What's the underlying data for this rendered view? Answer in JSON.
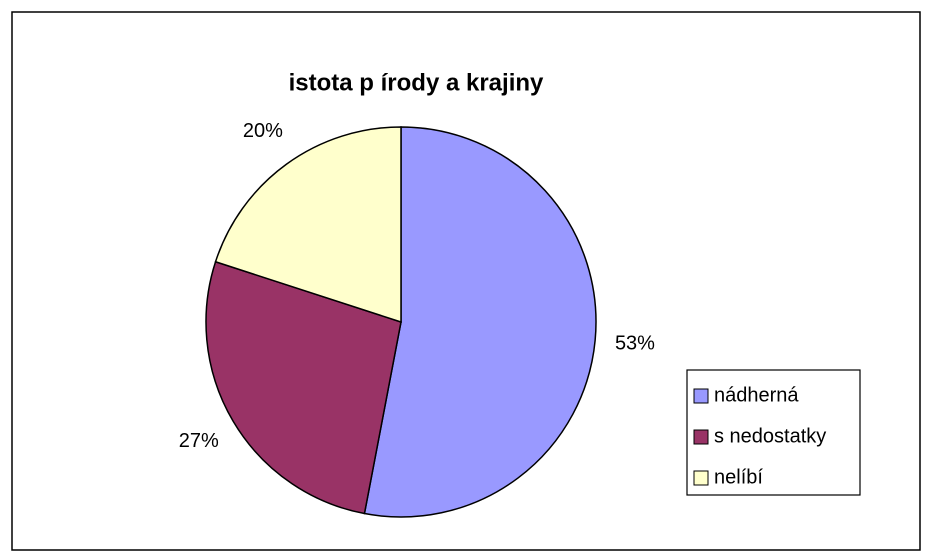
{
  "chart_data": {
    "type": "pie",
    "title": "istota p írody a krajiny",
    "categories": [
      "nádherná",
      "s nedostatky",
      "nelíbí"
    ],
    "values": [
      53,
      27,
      20
    ],
    "value_labels": [
      "53%",
      "27%",
      "20%"
    ],
    "colors": [
      "#9999ff",
      "#993366",
      "#ffffcc"
    ],
    "legend": "right"
  }
}
